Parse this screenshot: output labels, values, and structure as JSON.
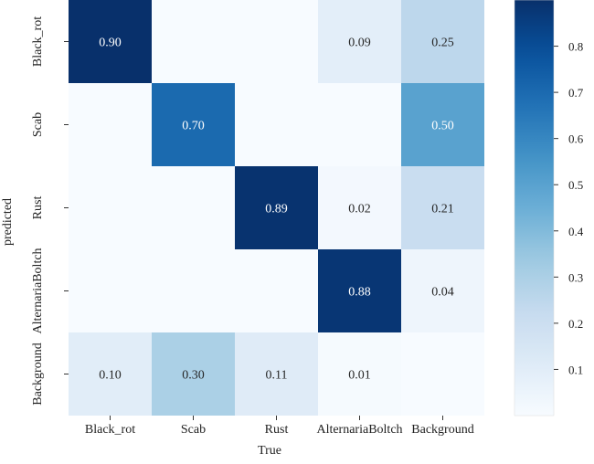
{
  "chart_data": {
    "type": "heatmap",
    "title": "",
    "xlabel": "True",
    "ylabel": "predicted",
    "x_categories": [
      "Black_rot",
      "Scab",
      "Rust",
      "AlternariaBoltch",
      "Background"
    ],
    "y_categories": [
      "Black_rot",
      "Scab",
      "Rust",
      "AlternariaBoltch",
      "Background"
    ],
    "values": [
      [
        0.9,
        null,
        null,
        0.09,
        0.25
      ],
      [
        null,
        0.7,
        null,
        null,
        0.5
      ],
      [
        null,
        null,
        0.89,
        0.02,
        0.21
      ],
      [
        null,
        null,
        null,
        0.88,
        0.04
      ],
      [
        0.1,
        0.3,
        0.11,
        0.01,
        null
      ]
    ],
    "cell_labels": [
      [
        "0.90",
        "",
        "",
        "0.09",
        "0.25"
      ],
      [
        "",
        "0.70",
        "",
        "",
        "0.50"
      ],
      [
        "",
        "",
        "0.89",
        "0.02",
        "0.21"
      ],
      [
        "",
        "",
        "",
        "0.88",
        "0.04"
      ],
      [
        "0.10",
        "0.30",
        "0.11",
        "0.01",
        ""
      ]
    ],
    "colorbar": {
      "vmin": 0.0,
      "vmax": 0.9,
      "ticks": [
        0.1,
        0.2,
        0.3,
        0.4,
        0.5,
        0.6,
        0.7,
        0.8
      ],
      "tick_labels": [
        "0.1",
        "0.2",
        "0.3",
        "0.4",
        "0.5",
        "0.6",
        "0.7",
        "0.8"
      ],
      "colormap": "Blues"
    },
    "grid": false
  }
}
